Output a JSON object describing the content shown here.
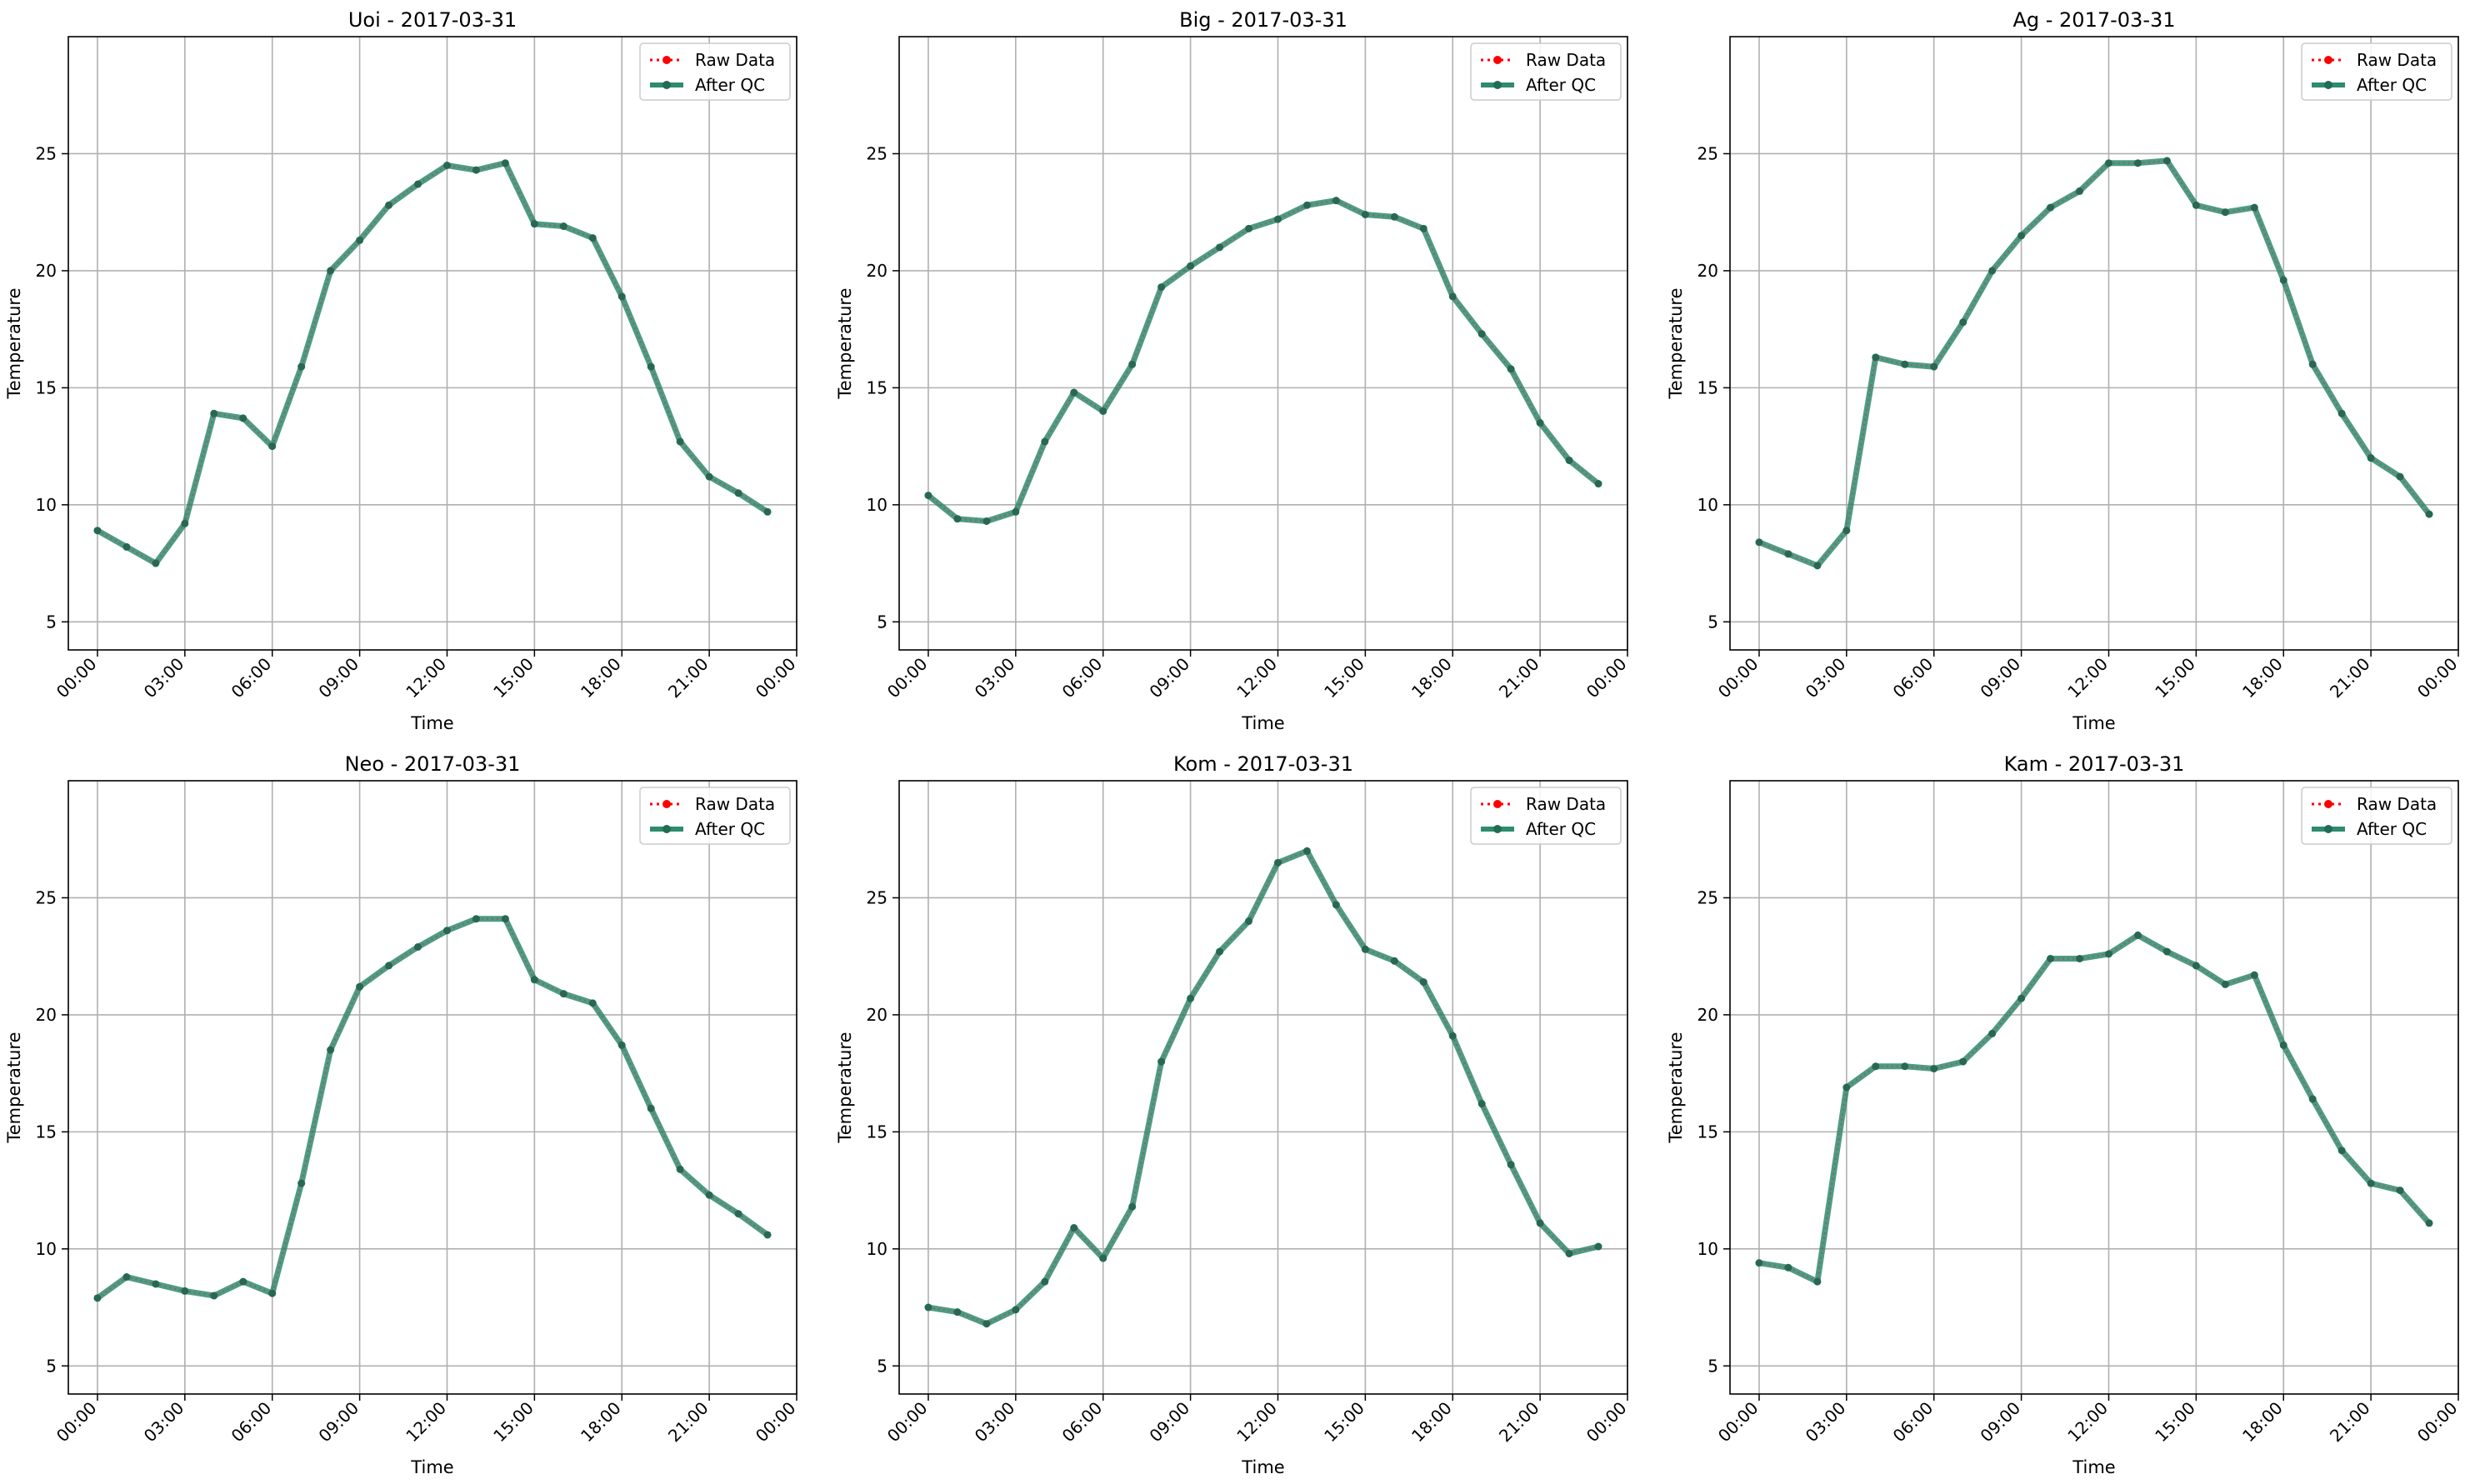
{
  "figure": {
    "legend_labels": {
      "raw": "Raw Data",
      "qc": "After QC"
    },
    "xlabel": "Time",
    "ylabel": "Temperature",
    "xlim_hours": [
      -1,
      24
    ],
    "ylim": [
      3.8,
      30
    ],
    "x_ticks": [
      "00:00",
      "03:00",
      "06:00",
      "09:00",
      "12:00",
      "15:00",
      "18:00",
      "21:00",
      "00:00"
    ],
    "y_ticks": [
      5,
      10,
      15,
      20,
      25
    ],
    "grid": true,
    "legend_position": "upper right",
    "colors": {
      "raw": "#ff0000",
      "qc": "#2e8b6e",
      "marker": "#226b54",
      "grid": "#b0b0b0"
    }
  },
  "chart_data": [
    {
      "type": "line",
      "title": "Uoi - 2017-03-31",
      "x": [
        "00:00",
        "01:00",
        "02:00",
        "03:00",
        "04:00",
        "05:00",
        "06:00",
        "07:00",
        "08:00",
        "09:00",
        "10:00",
        "11:00",
        "12:00",
        "13:00",
        "14:00",
        "15:00",
        "16:00",
        "17:00",
        "18:00",
        "19:00",
        "20:00",
        "21:00",
        "22:00",
        "23:00"
      ],
      "series": [
        {
          "name": "Raw Data",
          "values": [
            8.9,
            8.2,
            7.5,
            9.2,
            13.9,
            13.7,
            12.5,
            15.9,
            20.0,
            21.3,
            22.8,
            23.7,
            24.5,
            24.3,
            24.6,
            22.0,
            21.9,
            21.4,
            18.9,
            15.9,
            12.7,
            11.2,
            10.5,
            9.7
          ]
        },
        {
          "name": "After QC",
          "values": [
            8.9,
            8.2,
            7.5,
            9.2,
            13.9,
            13.7,
            12.5,
            15.9,
            20.0,
            21.3,
            22.8,
            23.7,
            24.5,
            24.3,
            24.6,
            22.0,
            21.9,
            21.4,
            18.9,
            15.9,
            12.7,
            11.2,
            10.5,
            9.7
          ]
        }
      ]
    },
    {
      "type": "line",
      "title": "Big - 2017-03-31",
      "x": [
        "00:00",
        "01:00",
        "02:00",
        "03:00",
        "04:00",
        "05:00",
        "06:00",
        "07:00",
        "08:00",
        "09:00",
        "10:00",
        "11:00",
        "12:00",
        "13:00",
        "14:00",
        "15:00",
        "16:00",
        "17:00",
        "18:00",
        "19:00",
        "20:00",
        "21:00",
        "22:00",
        "23:00"
      ],
      "series": [
        {
          "name": "Raw Data",
          "values": [
            10.4,
            9.4,
            9.3,
            9.7,
            12.7,
            14.8,
            14.0,
            16.0,
            19.3,
            20.2,
            21.0,
            21.8,
            22.2,
            22.8,
            23.0,
            22.4,
            22.3,
            21.8,
            18.9,
            17.3,
            15.8,
            13.5,
            11.9,
            10.9
          ]
        },
        {
          "name": "After QC",
          "values": [
            10.4,
            9.4,
            9.3,
            9.7,
            12.7,
            14.8,
            14.0,
            16.0,
            19.3,
            20.2,
            21.0,
            21.8,
            22.2,
            22.8,
            23.0,
            22.4,
            22.3,
            21.8,
            18.9,
            17.3,
            15.8,
            13.5,
            11.9,
            10.9
          ]
        }
      ]
    },
    {
      "type": "line",
      "title": "Ag - 2017-03-31",
      "x": [
        "00:00",
        "01:00",
        "02:00",
        "03:00",
        "04:00",
        "05:00",
        "06:00",
        "07:00",
        "08:00",
        "09:00",
        "10:00",
        "11:00",
        "12:00",
        "13:00",
        "14:00",
        "15:00",
        "16:00",
        "17:00",
        "18:00",
        "19:00",
        "20:00",
        "21:00",
        "22:00",
        "23:00"
      ],
      "series": [
        {
          "name": "Raw Data",
          "values": [
            8.4,
            7.9,
            7.4,
            8.9,
            16.3,
            16.0,
            15.9,
            17.8,
            20.0,
            21.5,
            22.7,
            23.4,
            24.6,
            24.6,
            24.7,
            22.8,
            22.5,
            22.7,
            19.6,
            16.0,
            13.9,
            12.0,
            11.2,
            9.6
          ]
        },
        {
          "name": "After QC",
          "values": [
            8.4,
            7.9,
            7.4,
            8.9,
            16.3,
            16.0,
            15.9,
            17.8,
            20.0,
            21.5,
            22.7,
            23.4,
            24.6,
            24.6,
            24.7,
            22.8,
            22.5,
            22.7,
            19.6,
            16.0,
            13.9,
            12.0,
            11.2,
            9.6
          ]
        }
      ]
    },
    {
      "type": "line",
      "title": "Neo - 2017-03-31",
      "x": [
        "00:00",
        "01:00",
        "02:00",
        "03:00",
        "04:00",
        "05:00",
        "06:00",
        "07:00",
        "08:00",
        "09:00",
        "10:00",
        "11:00",
        "12:00",
        "13:00",
        "14:00",
        "15:00",
        "16:00",
        "17:00",
        "18:00",
        "19:00",
        "20:00",
        "21:00",
        "22:00",
        "23:00"
      ],
      "series": [
        {
          "name": "Raw Data",
          "values": [
            7.9,
            8.8,
            8.5,
            8.2,
            8.0,
            8.6,
            8.1,
            12.8,
            18.5,
            21.2,
            22.1,
            22.9,
            23.6,
            24.1,
            24.1,
            21.5,
            20.9,
            20.5,
            18.7,
            16.0,
            13.4,
            12.3,
            11.5,
            10.6
          ]
        },
        {
          "name": "After QC",
          "values": [
            7.9,
            8.8,
            8.5,
            8.2,
            8.0,
            8.6,
            8.1,
            12.8,
            18.5,
            21.2,
            22.1,
            22.9,
            23.6,
            24.1,
            24.1,
            21.5,
            20.9,
            20.5,
            18.7,
            16.0,
            13.4,
            12.3,
            11.5,
            10.6
          ]
        }
      ]
    },
    {
      "type": "line",
      "title": "Kom - 2017-03-31",
      "x": [
        "00:00",
        "01:00",
        "02:00",
        "03:00",
        "04:00",
        "05:00",
        "06:00",
        "07:00",
        "08:00",
        "09:00",
        "10:00",
        "11:00",
        "12:00",
        "13:00",
        "14:00",
        "15:00",
        "16:00",
        "17:00",
        "18:00",
        "19:00",
        "20:00",
        "21:00",
        "22:00",
        "23:00"
      ],
      "series": [
        {
          "name": "Raw Data",
          "values": [
            7.5,
            7.3,
            6.8,
            7.4,
            8.6,
            10.9,
            9.6,
            11.8,
            18.0,
            20.7,
            22.7,
            24.0,
            26.5,
            27.0,
            24.7,
            22.8,
            22.3,
            21.4,
            19.1,
            16.2,
            13.6,
            11.1,
            9.8,
            10.1
          ]
        },
        {
          "name": "After QC",
          "values": [
            7.5,
            7.3,
            6.8,
            7.4,
            8.6,
            10.9,
            9.6,
            11.8,
            18.0,
            20.7,
            22.7,
            24.0,
            26.5,
            27.0,
            24.7,
            22.8,
            22.3,
            21.4,
            19.1,
            16.2,
            13.6,
            11.1,
            9.8,
            10.1
          ]
        }
      ]
    },
    {
      "type": "line",
      "title": "Kam - 2017-03-31",
      "x": [
        "00:00",
        "01:00",
        "02:00",
        "03:00",
        "04:00",
        "05:00",
        "06:00",
        "07:00",
        "08:00",
        "09:00",
        "10:00",
        "11:00",
        "12:00",
        "13:00",
        "14:00",
        "15:00",
        "16:00",
        "17:00",
        "18:00",
        "19:00",
        "20:00",
        "21:00",
        "22:00",
        "23:00"
      ],
      "series": [
        {
          "name": "Raw Data",
          "values": [
            9.4,
            9.2,
            8.6,
            16.9,
            17.8,
            17.8,
            17.7,
            18.0,
            19.2,
            20.7,
            22.4,
            22.4,
            22.6,
            23.4,
            22.7,
            22.1,
            21.3,
            21.7,
            18.7,
            16.4,
            14.2,
            12.8,
            12.5,
            11.1
          ]
        },
        {
          "name": "After QC",
          "values": [
            9.4,
            9.2,
            8.6,
            16.9,
            17.8,
            17.8,
            17.7,
            18.0,
            19.2,
            20.7,
            22.4,
            22.4,
            22.6,
            23.4,
            22.7,
            22.1,
            21.3,
            21.7,
            18.7,
            16.4,
            14.2,
            12.8,
            12.5,
            11.1
          ]
        }
      ]
    }
  ]
}
